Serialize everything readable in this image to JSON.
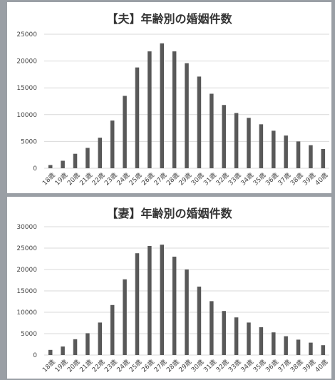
{
  "chart_data": [
    {
      "type": "bar",
      "title": "【夫】年齢別の婚姻件数",
      "xlabel": "",
      "ylabel": "",
      "categories": [
        "18歳",
        "19歳",
        "20歳",
        "21歳",
        "22歳",
        "23歳",
        "24歳",
        "25歳",
        "26歳",
        "27歳",
        "28歳",
        "29歳",
        "30歳",
        "31歳",
        "32歳",
        "33歳",
        "34歳",
        "35歳",
        "36歳",
        "37歳",
        "38歳",
        "39歳",
        "40歳"
      ],
      "values": [
        600,
        1400,
        2700,
        3800,
        5700,
        8900,
        13500,
        18800,
        21800,
        23300,
        21800,
        19600,
        17100,
        13900,
        11800,
        10300,
        9400,
        8200,
        7000,
        6100,
        5000,
        4300,
        3600
      ],
      "ylim": [
        0,
        25000
      ],
      "yticks": [
        "0",
        "5000",
        "10000",
        "15000",
        "20000",
        "25000"
      ],
      "grid": true,
      "bar_color": "#595959"
    },
    {
      "type": "bar",
      "title": "【妻】年齢別の婚姻件数",
      "xlabel": "",
      "ylabel": "",
      "categories": [
        "18歳",
        "19歳",
        "20歳",
        "21歳",
        "22歳",
        "23歳",
        "24歳",
        "25歳",
        "26歳",
        "27歳",
        "28歳",
        "29歳",
        "30歳",
        "31歳",
        "32歳",
        "33歳",
        "34歳",
        "35歳",
        "36歳",
        "37歳",
        "38歳",
        "39歳",
        "40歳"
      ],
      "values": [
        1200,
        2000,
        3700,
        5100,
        7600,
        11700,
        17700,
        23800,
        25500,
        25800,
        23000,
        20000,
        16000,
        12600,
        10300,
        8800,
        7600,
        6500,
        5300,
        4400,
        3600,
        2900,
        2300
      ],
      "ylim": [
        0,
        30000
      ],
      "yticks": [
        "0",
        "5000",
        "10000",
        "15000",
        "20000",
        "25000",
        "30000"
      ],
      "grid": true,
      "bar_color": "#595959"
    }
  ]
}
